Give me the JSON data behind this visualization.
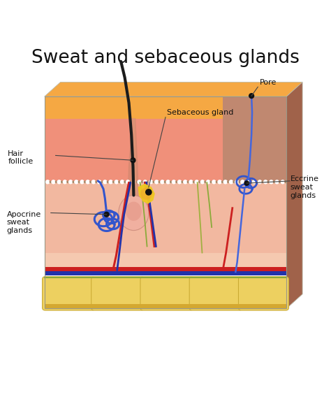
{
  "title": "Sweat and sebaceous glands",
  "title_fontsize": 19,
  "bg_color": "#ffffff",
  "layers": {
    "top_orange": "#F5A843",
    "epidermis_pink": "#F0907A",
    "dermis_peach": "#F2B8A0",
    "hypodermis_light": "#F5C9B0",
    "fat_yellow": "#F0D878",
    "fat_cell": "#EDD060",
    "side_brown": "#A0624A",
    "side_brown2": "#C08870",
    "gray_line": "#D8D8CC",
    "base_thin": "#E8C870"
  },
  "colors": {
    "hair": "#1C1C1C",
    "follicle_sheath": "#D48870",
    "follicle_bulb": "#EAAA96",
    "sebaceous_yellow": "#EEC820",
    "sebaceous_orange": "#F0A030",
    "blue_gland": "#3355CC",
    "blue_duct": "#4466DD",
    "red_vessel": "#CC2020",
    "blue_vessel": "#2233AA",
    "green_nerve": "#8AAA3A",
    "olive_nerve": "#A0B040",
    "dot_white": "#FFFFFF",
    "dot_brown": "#AA8866",
    "anno_line": "#444444"
  },
  "labels": {
    "title": "Sweat and sebaceous glands",
    "sebaceous": "Sebaceous gland",
    "pore": "Pore",
    "hair_follicle": "Hair\nfollicle",
    "apocrine": "Apocrine\nsweat\nglands",
    "eccrine": "Eccrine\nsweat\nglands"
  }
}
